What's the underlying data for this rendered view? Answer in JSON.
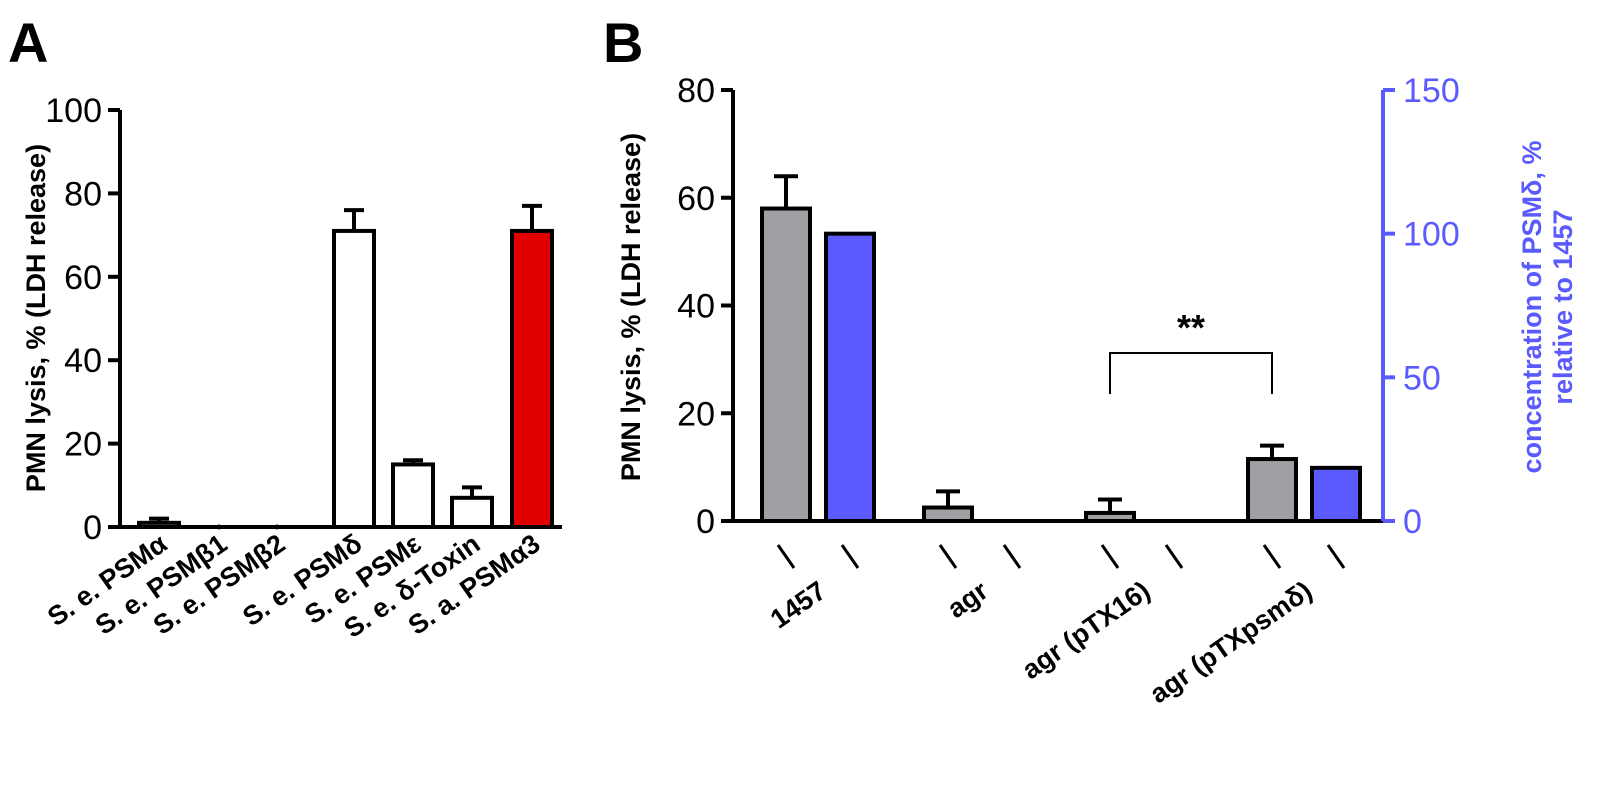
{
  "chart_data": [
    {
      "panel": "A",
      "type": "bar",
      "ylabel": "PMN lysis, % (LDH release)",
      "ylim": [
        0,
        100
      ],
      "yticks": [
        0,
        20,
        40,
        60,
        80,
        100
      ],
      "categories": [
        "S. e. PSMα",
        "S. e. PSMβ1",
        "S. e. PSMβ2",
        "S. e. PSMδ",
        "S. e. PSMε",
        "S. e. δ-Toxin",
        "S. a. PSMα3"
      ],
      "values": [
        1,
        0,
        0,
        71,
        15,
        7,
        71
      ],
      "errors": [
        1,
        0,
        0,
        5,
        1,
        2.5,
        6
      ],
      "colors": [
        "#ffffff",
        "#ffffff",
        "#ffffff",
        "#ffffff",
        "#ffffff",
        "#ffffff",
        "#e00000"
      ]
    },
    {
      "panel": "B",
      "type": "bar",
      "ylabel": "PMN lysis, % (LDH release)",
      "ylim": [
        0,
        80
      ],
      "yticks": [
        0,
        20,
        40,
        60,
        80
      ],
      "y2label_line1": "concentration of PSMδ, %",
      "y2label_line2": "relative to 1457",
      "y2lim": [
        0,
        150
      ],
      "y2ticks": [
        0,
        50,
        100,
        150
      ],
      "categories": [
        "1457",
        "agr",
        "agr (pTX16)",
        "agr (pTXpsmδ)"
      ],
      "series": [
        {
          "axis": "left",
          "color": "#a0a0a4",
          "values": [
            58,
            2.5,
            1.5,
            11.5
          ],
          "errors": [
            6,
            3,
            2.5,
            2.5
          ]
        },
        {
          "axis": "right",
          "color": "#5a5aff",
          "values": [
            100,
            0,
            0,
            18.5
          ]
        }
      ],
      "annotation": {
        "text": "**",
        "from": 2,
        "to": 3
      }
    }
  ]
}
